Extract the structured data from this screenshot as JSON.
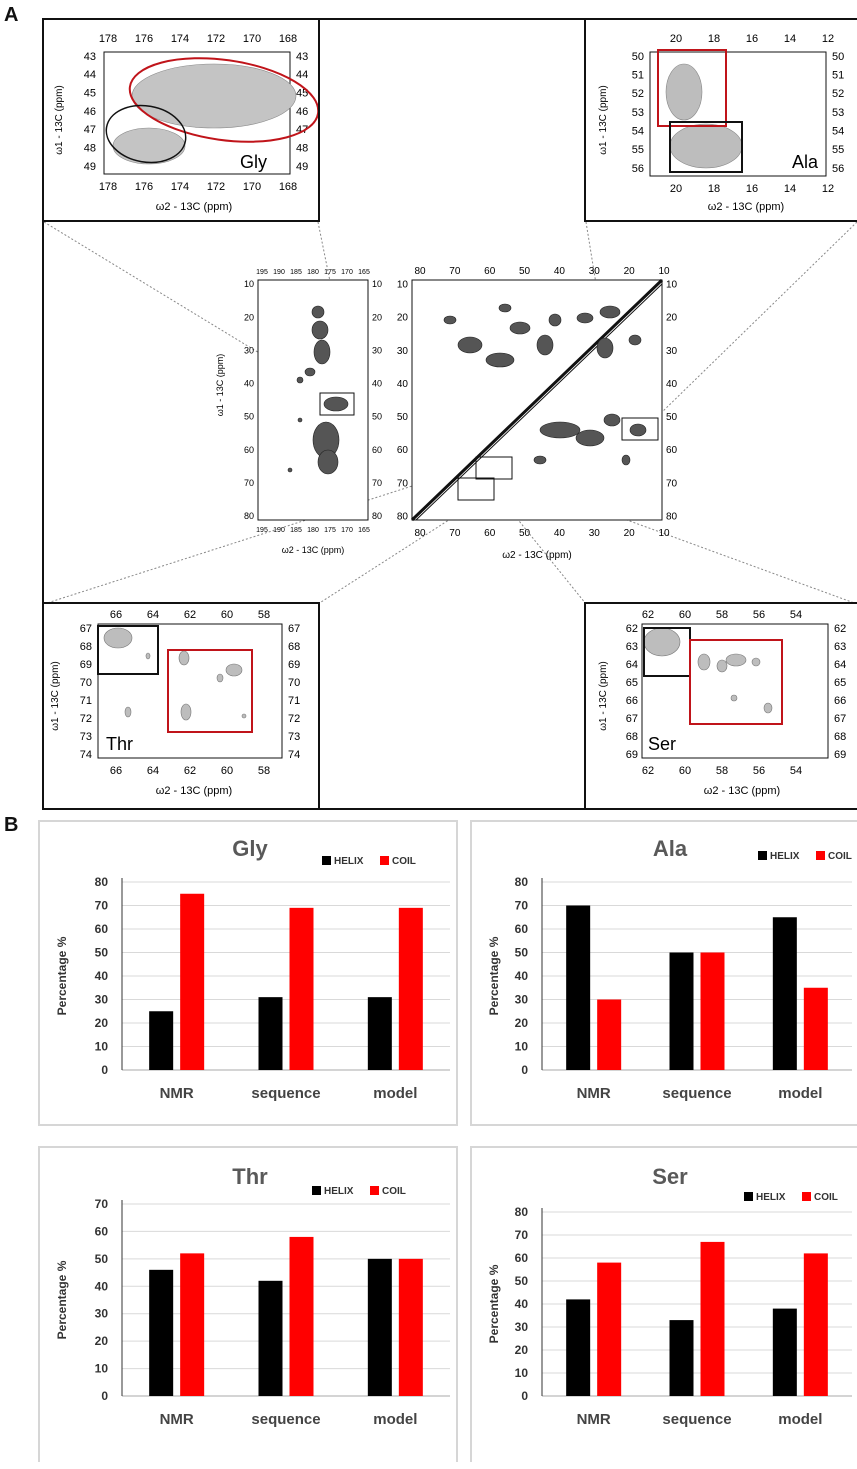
{
  "panels": {
    "a": "A",
    "b": "B"
  },
  "spectra": {
    "left": {
      "top_ticks": [
        "195",
        "190",
        "185",
        "180",
        "175",
        "170",
        "165"
      ],
      "bottom_ticks": [
        "195",
        "190",
        "185",
        "180",
        "175",
        "170",
        "165"
      ],
      "y_ticks": [
        "10",
        "20",
        "30",
        "40",
        "50",
        "60",
        "70",
        "80"
      ],
      "ylabel": "ω1 - 13C (ppm)",
      "xlabel": "ω2 - 13C (ppm)"
    },
    "right": {
      "top_ticks": [
        "80",
        "70",
        "60",
        "50",
        "40",
        "30",
        "20",
        "10"
      ],
      "bottom_ticks": [
        "80",
        "70",
        "60",
        "50",
        "40",
        "30",
        "20",
        "10"
      ],
      "y_ticks": [
        "10",
        "20",
        "30",
        "40",
        "50",
        "60",
        "70",
        "80"
      ],
      "xlabel": "ω2 - 13C (ppm)"
    }
  },
  "insets": {
    "gly": {
      "label": "Gly",
      "x_ticks": [
        "178",
        "176",
        "174",
        "172",
        "170",
        "168"
      ],
      "y_ticks": [
        "43",
        "44",
        "45",
        "46",
        "47",
        "48",
        "49"
      ],
      "xlabel": "ω2 - 13C (ppm)",
      "ylabel": "ω1 - 13C (ppm)"
    },
    "ala": {
      "label": "Ala",
      "x_ticks": [
        "20",
        "18",
        "16",
        "14",
        "12"
      ],
      "y_ticks": [
        "50",
        "51",
        "52",
        "53",
        "54",
        "55",
        "56"
      ],
      "xlabel": "ω2 - 13C (ppm)",
      "ylabel": "ω1 - 13C (ppm)"
    },
    "thr": {
      "label": "Thr",
      "x_ticks": [
        "66",
        "64",
        "62",
        "60",
        "58"
      ],
      "y_ticks": [
        "67",
        "68",
        "69",
        "70",
        "71",
        "72",
        "73",
        "74"
      ],
      "xlabel": "ω2 - 13C (ppm)",
      "ylabel": "ω1 - 13C (ppm)"
    },
    "ser": {
      "label": "Ser",
      "x_ticks": [
        "62",
        "60",
        "58",
        "56",
        "54"
      ],
      "y_ticks": [
        "62",
        "63",
        "64",
        "65",
        "66",
        "67",
        "68",
        "69"
      ],
      "xlabel": "ω2 - 13C (ppm)",
      "ylabel": "ω1 - 13C (ppm)"
    }
  },
  "colors": {
    "helix": "#000000",
    "coil": "#ff0000",
    "grid": "#d9d9d9",
    "title": "#595959"
  },
  "chart_data": [
    {
      "type": "bar",
      "title": "Gly",
      "categories": [
        "NMR",
        "sequence",
        "model"
      ],
      "series": [
        {
          "name": "HELIX",
          "values": [
            25,
            31,
            31
          ]
        },
        {
          "name": "COIL",
          "values": [
            75,
            69,
            69
          ]
        }
      ],
      "ylabel": "Percentage %",
      "ylim": [
        0,
        80
      ],
      "yticks": [
        0,
        10,
        20,
        30,
        40,
        50,
        60,
        70,
        80
      ],
      "grid": true,
      "legend": "top-right"
    },
    {
      "type": "bar",
      "title": "Ala",
      "categories": [
        "NMR",
        "sequence",
        "model"
      ],
      "series": [
        {
          "name": "HELIX",
          "values": [
            70,
            50,
            65
          ]
        },
        {
          "name": "COIL",
          "values": [
            30,
            50,
            35
          ]
        }
      ],
      "ylabel": "Percentage %",
      "ylim": [
        0,
        80
      ],
      "yticks": [
        0,
        10,
        20,
        30,
        40,
        50,
        60,
        70,
        80
      ],
      "grid": true,
      "legend": "top-right"
    },
    {
      "type": "bar",
      "title": "Thr",
      "categories": [
        "NMR",
        "sequence",
        "model"
      ],
      "series": [
        {
          "name": "HELIX",
          "values": [
            46,
            42,
            50
          ]
        },
        {
          "name": "COIL",
          "values": [
            52,
            58,
            50
          ]
        }
      ],
      "ylabel": "Percentage %",
      "ylim": [
        0,
        70
      ],
      "yticks": [
        0,
        10,
        20,
        30,
        40,
        50,
        60,
        70
      ],
      "grid": true,
      "legend": "top-right"
    },
    {
      "type": "bar",
      "title": "Ser",
      "categories": [
        "NMR",
        "sequence",
        "model"
      ],
      "series": [
        {
          "name": "HELIX",
          "values": [
            42,
            33,
            38
          ]
        },
        {
          "name": "COIL",
          "values": [
            58,
            67,
            62
          ]
        }
      ],
      "ylabel": "Percentage %",
      "ylim": [
        0,
        80
      ],
      "yticks": [
        0,
        10,
        20,
        30,
        40,
        50,
        60,
        70,
        80
      ],
      "grid": true,
      "legend": "top-right"
    }
  ]
}
